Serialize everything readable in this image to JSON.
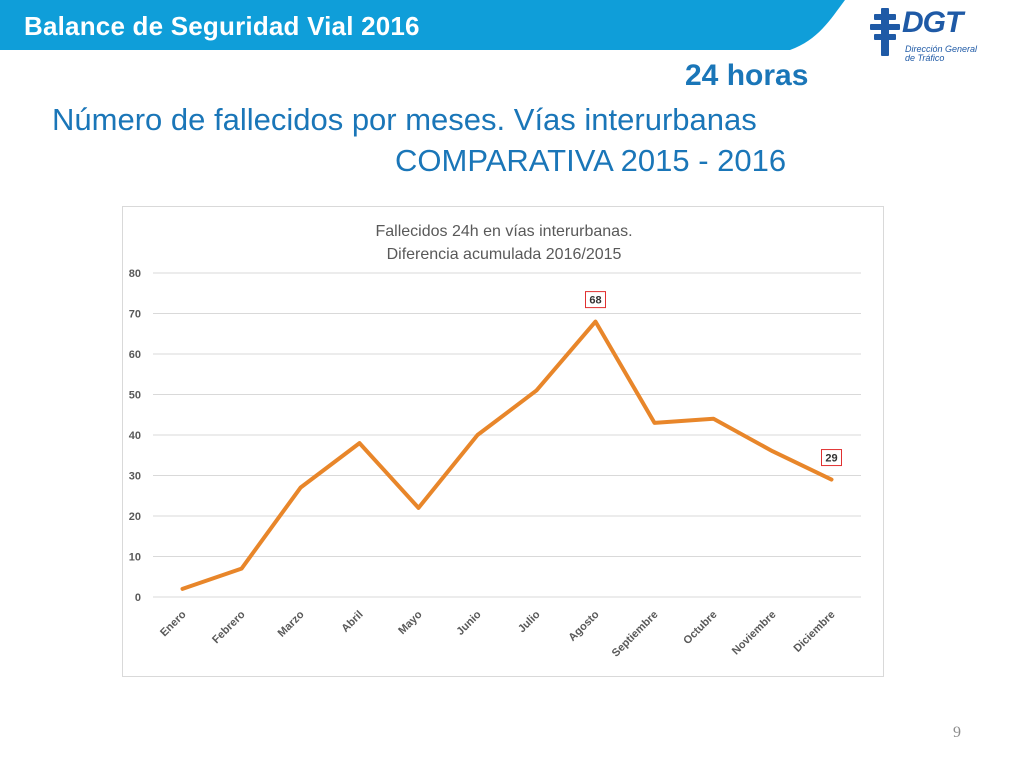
{
  "header": {
    "title": "Balance de Seguridad Vial 2016",
    "bar_color": "#0f9ed9"
  },
  "logo": {
    "brand": "DGT",
    "subtitle_line1": "Dirección General",
    "subtitle_line2": "de Tráfico",
    "color": "#1f5aa6"
  },
  "slide": {
    "title_line1": "24 horas",
    "title_line2": "Número de fallecidos por meses. Vías interurbanas",
    "title_line3": "COMPARATIVA 2015 - 2016",
    "title_color": "#1a76b8",
    "page_number": "9"
  },
  "chart_data": {
    "type": "line",
    "title": "Fallecidos 24h en vías interurbanas.",
    "subtitle": "Diferencia acumulada 2016/2015",
    "xlabel": "",
    "ylabel": "",
    "categories": [
      "Enero",
      "Febrero",
      "Marzo",
      "Abril",
      "Mayo",
      "Junio",
      "Julio",
      "Agosto",
      "Septiembre",
      "Octubre",
      "Noviembre",
      "Diciembre"
    ],
    "series": [
      {
        "name": "",
        "values": [
          2,
          7,
          27,
          38,
          22,
          40,
          51,
          68,
          43,
          44,
          36,
          29
        ],
        "color": "#e8862a"
      }
    ],
    "ylim": [
      0,
      80
    ],
    "yticks": [
      0,
      10,
      20,
      30,
      40,
      50,
      60,
      70,
      80
    ],
    "grid": true,
    "legend": "none",
    "data_labels": [
      {
        "category": "Agosto",
        "value": "68"
      },
      {
        "category": "Diciembre",
        "value": "29"
      }
    ],
    "label_border_color": "#e03030"
  }
}
